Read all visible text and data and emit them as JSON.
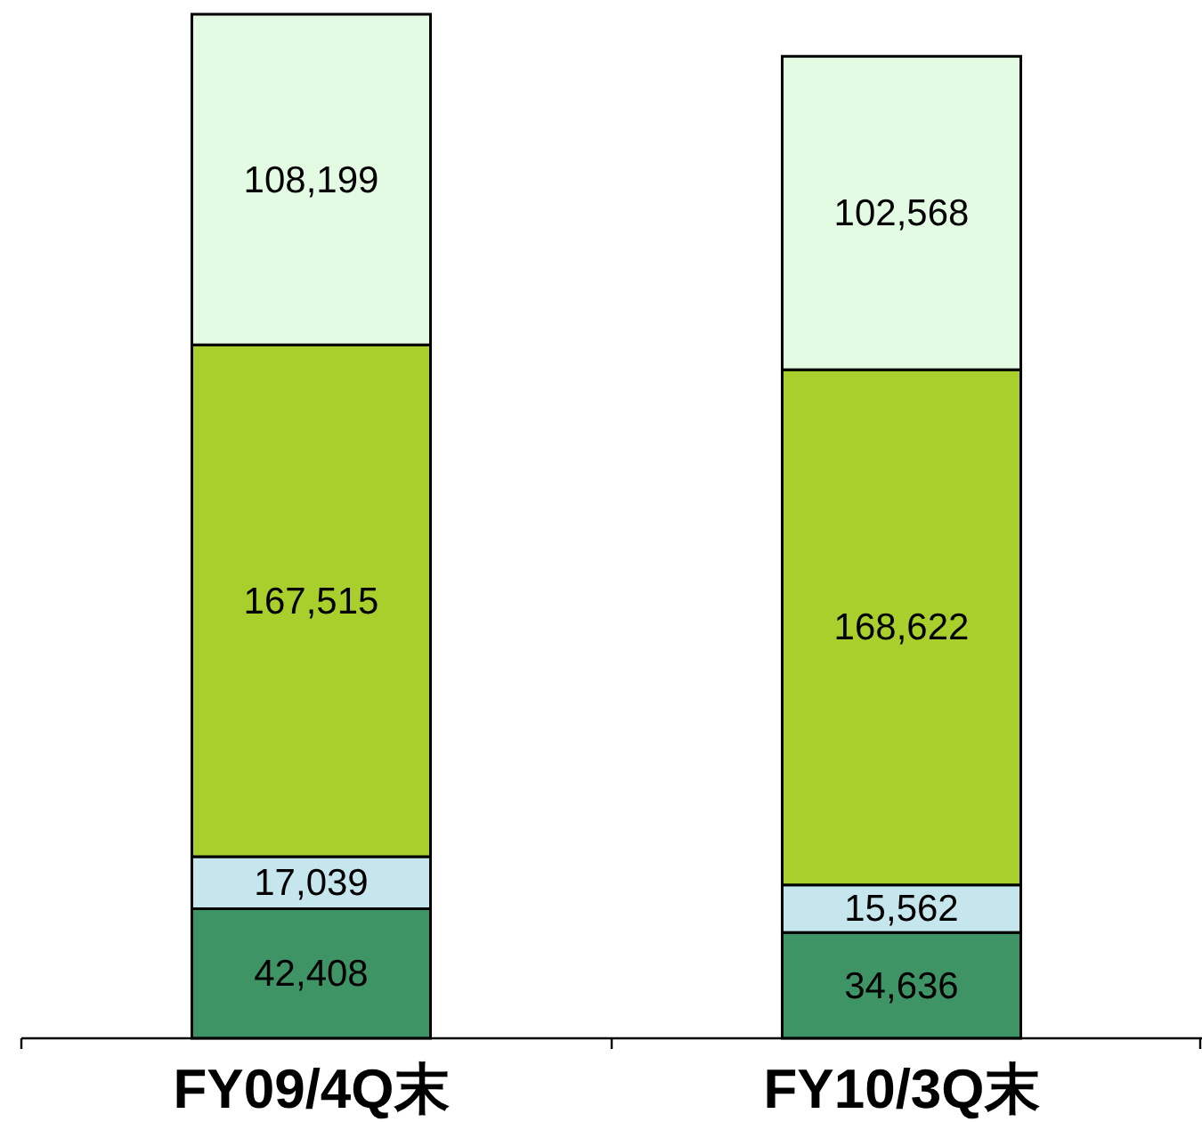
{
  "chart_data": {
    "type": "bar",
    "stacked": true,
    "categories": [
      "FY09/4Q末",
      "FY10/3Q末"
    ],
    "series": [
      {
        "color": "#3f9466",
        "values": [
          42408,
          34636
        ],
        "value_labels": [
          "42,408",
          "34,636"
        ]
      },
      {
        "color": "#c6e6ee",
        "values": [
          17039,
          15562
        ],
        "value_labels": [
          "17,039",
          "15,562"
        ]
      },
      {
        "color": "#a9cf2c",
        "values": [
          167515,
          168622
        ],
        "value_labels": [
          "167,515",
          "168,622"
        ]
      },
      {
        "color": "#e2fbe2",
        "values": [
          108199,
          102568
        ],
        "value_labels": [
          "108,199",
          "102,568"
        ]
      }
    ]
  }
}
